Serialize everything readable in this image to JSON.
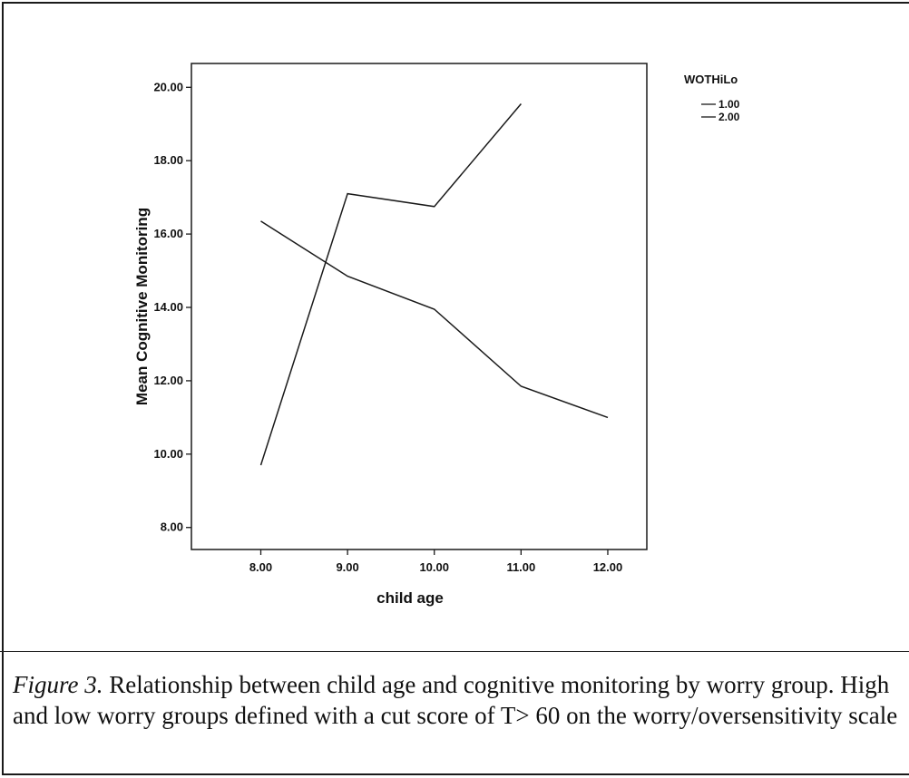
{
  "chart_data": {
    "type": "line",
    "title": "",
    "xlabel": "child age",
    "ylabel": "Mean Cognitive Monitoring",
    "x": [
      8.0,
      9.0,
      10.0,
      11.0,
      12.0
    ],
    "x_tick_labels": [
      "8.00",
      "9.00",
      "10.00",
      "11.00",
      "12.00"
    ],
    "y_tick_labels": [
      "8.00",
      "10.00",
      "12.00",
      "14.00",
      "16.00",
      "18.00",
      "20.00"
    ],
    "xlim": [
      7.2,
      12.45
    ],
    "ylim": [
      7.4,
      20.65
    ],
    "grid": false,
    "legend": {
      "title": "WOTHiLo",
      "placement": "top-right outside"
    },
    "series": [
      {
        "name": "1.00",
        "x": [
          8.0,
          9.0,
          10.0,
          11.0,
          12.0
        ],
        "values": [
          16.35,
          14.85,
          13.95,
          11.85,
          11.0
        ]
      },
      {
        "name": "2.00",
        "x": [
          8.0,
          9.0,
          10.0,
          11.0
        ],
        "values": [
          9.7,
          17.1,
          16.75,
          19.55
        ]
      }
    ],
    "line_color": "#1a1a1a"
  },
  "caption": {
    "lead": "Figure 3.",
    "text": " Relationship between child age and cognitive monitoring by worry group. High and low worry groups defined with a cut score of T> 60 on the worry/oversensitivity scale"
  }
}
